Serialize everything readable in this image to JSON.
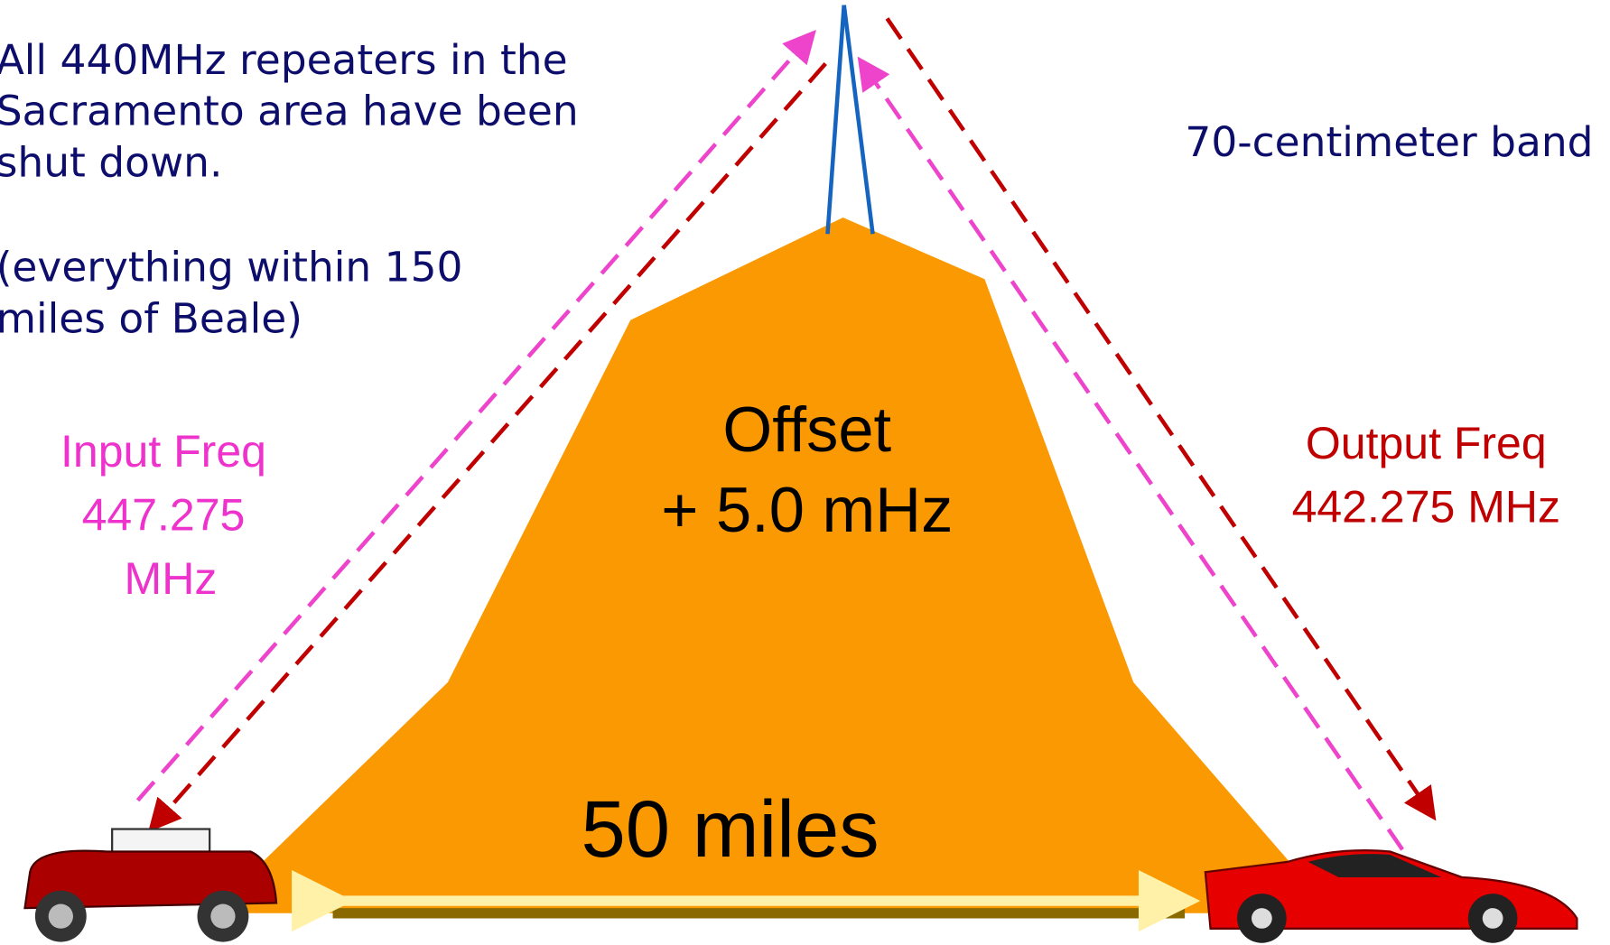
{
  "notice": {
    "lines": [
      "All 440MHz repeaters in the",
      "Sacramento area have been",
      "shut down."
    ],
    "note": [
      "(everything within 150",
      "miles of Beale)"
    ]
  },
  "band_label": "70-centimeter band",
  "input": {
    "lines": [
      "Input Freq",
      "447.275",
      "MHz"
    ]
  },
  "output": {
    "lines": [
      "Output Freq",
      "442.275 MHz"
    ]
  },
  "offset": {
    "lines": [
      "Offset",
      "+ 5.0 mHz"
    ]
  },
  "distance": "50 miles"
}
